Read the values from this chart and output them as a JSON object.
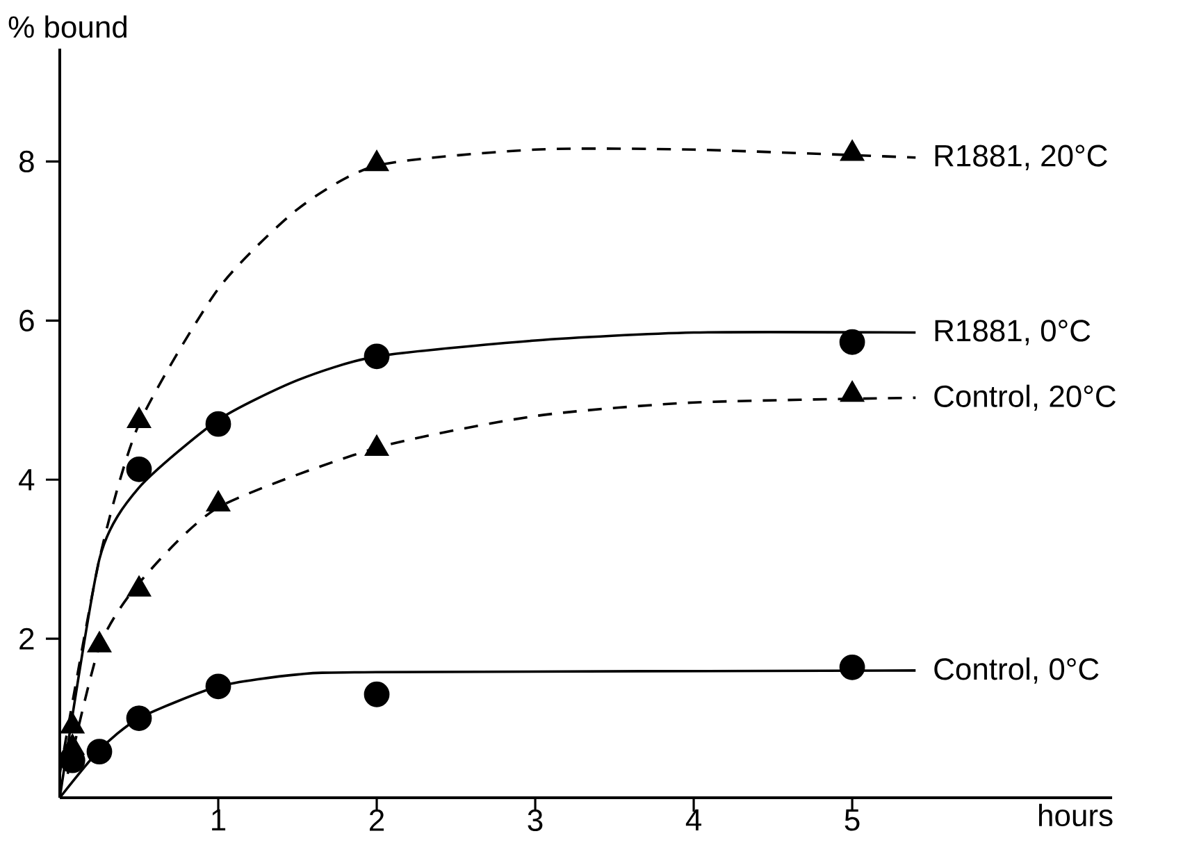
{
  "chart_data": {
    "type": "scatter",
    "xlabel": "hours",
    "ylabel": "% bound",
    "xlim": [
      0,
      6.64
    ],
    "ylim": [
      0,
      9.42
    ],
    "xticks": [
      1,
      2,
      3,
      4,
      5
    ],
    "yticks": [
      2,
      4,
      6,
      8
    ],
    "grid": false,
    "series": [
      {
        "type": "line",
        "name": "R1881, 20°C",
        "color": "#000000",
        "line_style": "dashed",
        "marker": "none",
        "x": [
          0,
          0.25,
          0.5,
          1,
          1.5,
          2,
          3,
          4,
          5.4
        ],
        "values": [
          0.3,
          3.0,
          4.7,
          6.4,
          7.4,
          7.95,
          8.15,
          8.15,
          8.05
        ]
      },
      {
        "type": "line",
        "name": "R1881, 0°C",
        "color": "#000000",
        "line_style": "solid",
        "marker": "none",
        "x": [
          0,
          0.25,
          0.5,
          1,
          1.5,
          2,
          3,
          4,
          5.4
        ],
        "values": [
          0,
          3.0,
          3.9,
          4.75,
          5.25,
          5.55,
          5.75,
          5.85,
          5.85
        ]
      },
      {
        "type": "line",
        "name": "Control, 20°C",
        "color": "#000000",
        "line_style": "dashed",
        "marker": "none",
        "x": [
          0.05,
          0.25,
          0.5,
          1,
          2,
          3,
          4,
          5.4
        ],
        "values": [
          0.3,
          1.9,
          2.7,
          3.65,
          4.4,
          4.8,
          4.97,
          5.03
        ]
      },
      {
        "type": "line",
        "name": "Control, 0°C",
        "color": "#000000",
        "line_style": "solid",
        "marker": "none",
        "x": [
          0,
          0.25,
          0.5,
          1,
          1.5,
          2,
          5.4
        ],
        "values": [
          0,
          0.6,
          1.0,
          1.4,
          1.55,
          1.58,
          1.6
        ]
      },
      {
        "color": "#000000",
        "marker": "triangle",
        "x": [
          0.08,
          0.5,
          2,
          5
        ],
        "values": [
          0.9,
          4.74,
          7.97,
          8.1
        ]
      },
      {
        "color": "#000000",
        "marker": "circle",
        "x": [
          0.08,
          0.5,
          1,
          2,
          5
        ],
        "values": [
          0.47,
          4.13,
          4.7,
          5.55,
          5.73
        ]
      },
      {
        "color": "#000000",
        "marker": "triangle",
        "x": [
          0.08,
          0.25,
          0.5,
          1,
          2,
          5
        ],
        "values": [
          0.63,
          1.92,
          2.62,
          3.69,
          4.39,
          5.07
        ]
      },
      {
        "color": "#000000",
        "marker": "circle",
        "x": [
          0.25,
          0.5,
          1,
          2,
          5
        ],
        "values": [
          0.58,
          1.0,
          1.4,
          1.3,
          1.64
        ]
      }
    ]
  }
}
